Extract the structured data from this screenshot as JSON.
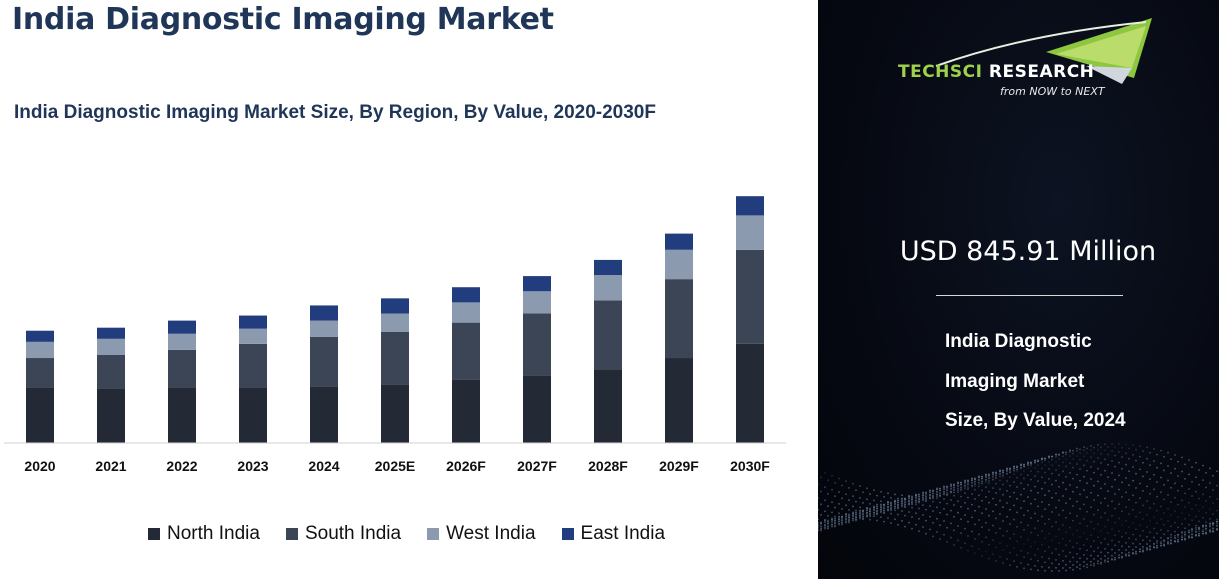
{
  "header": {
    "title": "India Diagnostic Imaging Market"
  },
  "chart_data": {
    "type": "bar",
    "stacked": true,
    "title": "India Diagnostic Imaging Market Size, By Region, By Value, 2020-2030F",
    "xlabel": "",
    "ylabel": "",
    "categories": [
      "2020",
      "2021",
      "2022",
      "2023",
      "2024",
      "2025E",
      "2026F",
      "2027F",
      "2028F",
      "2029F",
      "2030F"
    ],
    "series": [
      {
        "name": "North India",
        "color": "#232a36",
        "values": [
          55,
          54,
          55,
          55,
          56,
          58,
          63,
          67,
          73,
          84,
          98
        ]
      },
      {
        "name": "South India",
        "color": "#3b4556",
        "values": [
          29,
          33,
          37,
          43,
          49,
          52,
          56,
          61,
          68,
          78,
          93
        ]
      },
      {
        "name": "West India",
        "color": "#8b9aaf",
        "values": [
          16,
          16,
          16,
          15,
          16,
          18,
          20,
          22,
          25,
          29,
          34
        ]
      },
      {
        "name": "East India",
        "color": "#223d7d",
        "values": [
          11,
          11,
          13,
          13,
          15,
          15,
          15,
          15,
          15,
          16,
          19
        ]
      }
    ],
    "legend_position": "bottom",
    "grid": false,
    "ylim": [
      0,
      260
    ]
  },
  "summary": {
    "value_text": "USD 845.91 Million",
    "description_lines": [
      "India Diagnostic",
      "Imaging Market",
      "Size, By Value, 2024"
    ]
  },
  "brand": {
    "name_part1": "TECHSCI ",
    "name_part2": "RESEARCH",
    "tagline": "from NOW to NEXT",
    "icon": "swoosh-logo-icon",
    "green": "#9ed24a"
  }
}
